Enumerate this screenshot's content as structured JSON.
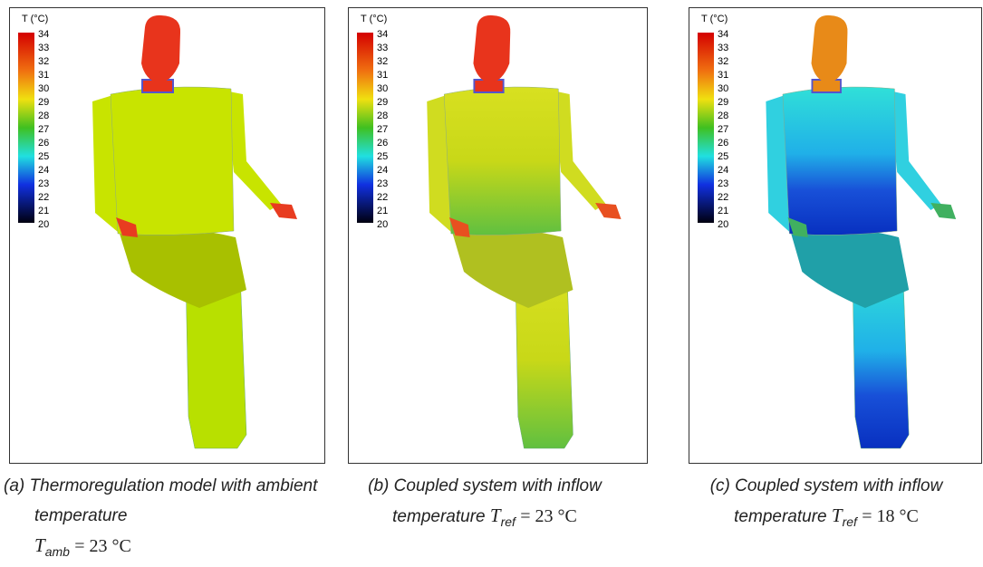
{
  "colorbar": {
    "title": "T (°C)",
    "ticks": [
      34,
      33,
      32,
      31,
      30,
      29,
      28,
      27,
      26,
      25,
      24,
      23,
      22,
      21,
      20
    ]
  },
  "panels": [
    {
      "caption": {
        "label": "(a)",
        "text": "Thermoregulation model with ambient temperature",
        "symbol": "T",
        "subscript": "amb",
        "equation": "= 23 °C"
      }
    },
    {
      "caption": {
        "label": "(b)",
        "text": "Coupled system with inflow temperature",
        "symbol": "T",
        "subscript": "ref",
        "equation": "= 23 °C"
      }
    },
    {
      "caption": {
        "label": "(c)",
        "text": "Coupled system with inflow temperature",
        "symbol": "T",
        "subscript": "ref",
        "equation": "= 18 °C"
      }
    }
  ]
}
